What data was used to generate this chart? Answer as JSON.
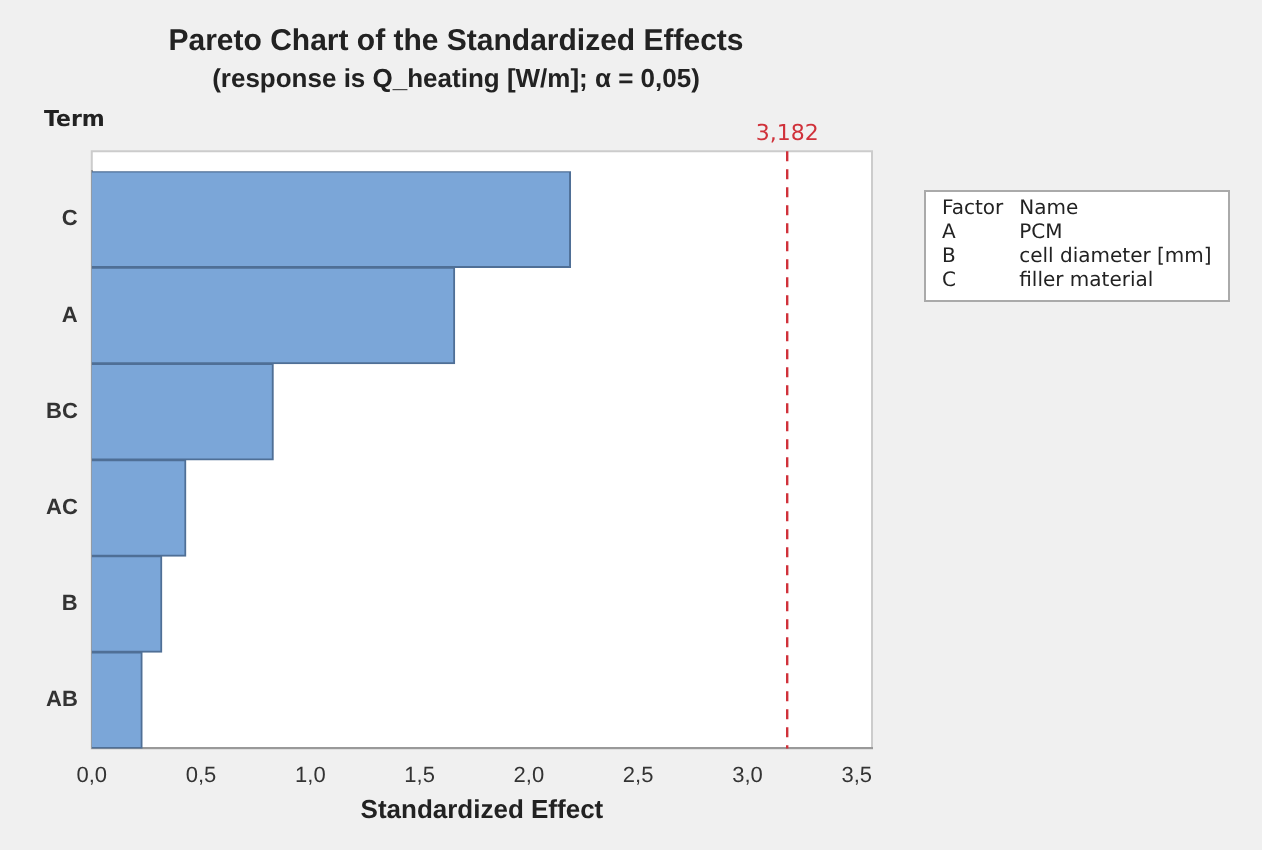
{
  "chart_data": {
    "type": "bar",
    "orientation": "horizontal",
    "title": "Pareto Chart of the Standardized Effects",
    "subtitle": "(response is Q_heating [W/m]; α = 0,05)",
    "xlabel": "Standardized Effect",
    "ylabel": "Term",
    "categories": [
      "C",
      "A",
      "BC",
      "AC",
      "B",
      "AB"
    ],
    "values": [
      2.19,
      1.66,
      0.83,
      0.43,
      0.32,
      0.23
    ],
    "color": "#7ba6d8",
    "xlim": [
      0,
      3.57
    ],
    "xticks": [
      {
        "value": 0,
        "label": "0,0"
      },
      {
        "value": 0.5,
        "label": "0,5"
      },
      {
        "value": 1,
        "label": "1,0"
      },
      {
        "value": 1.5,
        "label": "1,5"
      },
      {
        "value": 2,
        "label": "2,0"
      },
      {
        "value": 2.5,
        "label": "2,5"
      },
      {
        "value": 3,
        "label": "3,0"
      },
      {
        "value": 3.5,
        "label": "3,5"
      }
    ],
    "ref_lines": [
      {
        "axis": "x",
        "value": 3.182,
        "label": "3,182",
        "color": "#d0313a",
        "line_style": "dashed"
      }
    ],
    "annotations": [
      "Factor",
      "Name",
      "A",
      "PCM",
      "B",
      "cell diameter [mm]",
      "C",
      "filler material"
    ],
    "grid": false,
    "legend": false
  }
}
